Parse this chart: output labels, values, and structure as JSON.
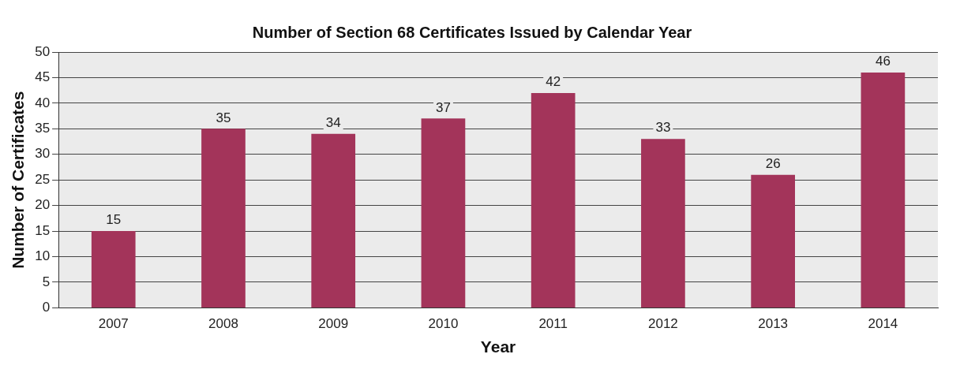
{
  "chart_data": {
    "type": "bar",
    "title": "Number of Section 68 Certificates Issued by Calendar Year",
    "xlabel": "Year",
    "ylabel": "Number of Certificates",
    "categories": [
      "2007",
      "2008",
      "2009",
      "2010",
      "2011",
      "2012",
      "2013",
      "2014"
    ],
    "values": [
      15,
      35,
      34,
      37,
      42,
      33,
      26,
      46
    ],
    "color": "#a3345a",
    "ylim": [
      0,
      50
    ],
    "yticks": [
      0,
      5,
      10,
      15,
      20,
      25,
      30,
      35,
      40,
      45,
      50
    ],
    "grid": "y",
    "data_labels": true
  }
}
